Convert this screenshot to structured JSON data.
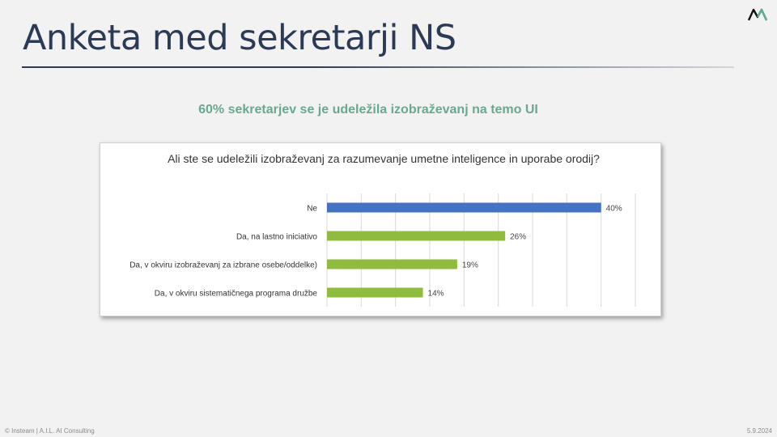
{
  "slide": {
    "title": "Anketa med sekretarji NS",
    "subtitle": "60% sekretarjev se je udeležila izobraževanj na temo UI",
    "footer_left": "© Insteam | A.I.L. AI Consulting",
    "footer_right": "5.9.2024"
  },
  "colors": {
    "title": "#2b3a55",
    "subtitle": "#6aa98f",
    "bar_highlight": "#4472c4",
    "bar_default": "#8fbc3f"
  },
  "chart_data": {
    "type": "bar",
    "orientation": "horizontal",
    "title": "Ali ste se udeležili izobraževanj za razumevanje umetne inteligence in uporabe orodij?",
    "categories": [
      "Ne",
      "Da, na lastno iniciativo",
      "Da, v okviru izobraževanj za izbrane osebe/oddelke)",
      "Da, v okviru sistematičnega programa družbe"
    ],
    "values": [
      40,
      26,
      19,
      14
    ],
    "labels": [
      "40%",
      "26%",
      "19%",
      "14%"
    ],
    "bar_colors": [
      "#4472c4",
      "#8fbc3f",
      "#8fbc3f",
      "#8fbc3f"
    ],
    "xlim": [
      0,
      45
    ],
    "grid": true,
    "legend": "none"
  }
}
